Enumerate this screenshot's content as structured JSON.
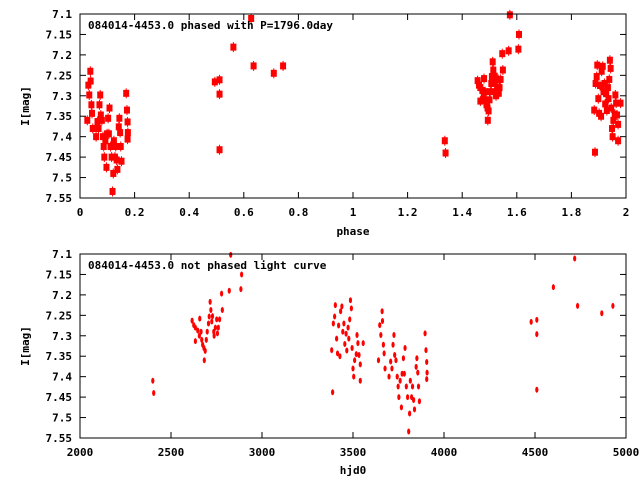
{
  "colors": {
    "points": "#ff0000",
    "axes": "#000000"
  },
  "chart_data": [
    {
      "type": "scatter",
      "title": "084014-4453.0 phased with P=1796.0day",
      "xlabel": "phase",
      "ylabel": "I[mag]",
      "xlim": [
        0,
        2
      ],
      "ylim": [
        7.55,
        7.1
      ],
      "y_inverted": true,
      "period": 1796.0,
      "phase_rule": "phase = (hjd0 / period) mod 2, derived from the light-curve series below",
      "xticks": [
        "0",
        "0.2",
        "0.4",
        "0.6",
        "0.8",
        "1",
        "1.2",
        "1.4",
        "1.6",
        "1.8",
        "2"
      ],
      "yticks": [
        "7.1",
        "7.15",
        "7.2",
        "7.25",
        "7.3",
        "7.35",
        "7.4",
        "7.45",
        "7.5",
        "7.55"
      ],
      "marker": "square"
    },
    {
      "type": "scatter",
      "title": "084014-4453.0 not phased light curve",
      "xlabel": "hjd0",
      "ylabel": "I[mag]",
      "xlim": [
        2000,
        5000
      ],
      "ylim": [
        7.55,
        7.1
      ],
      "y_inverted": true,
      "xticks": [
        "2000",
        "2500",
        "3000",
        "3500",
        "4000",
        "4500",
        "5000"
      ],
      "yticks": [
        "7.1",
        "7.15",
        "7.2",
        "7.25",
        "7.3",
        "7.35",
        "7.4",
        "7.45",
        "7.5",
        "7.55"
      ],
      "marker": "ellipse",
      "points": [
        [
          2400,
          7.41
        ],
        [
          2405,
          7.44
        ],
        [
          2616,
          7.263
        ],
        [
          2625,
          7.274
        ],
        [
          2634,
          7.28
        ],
        [
          2634,
          7.313
        ],
        [
          2647,
          7.287
        ],
        [
          2656,
          7.3
        ],
        [
          2658,
          7.258
        ],
        [
          2665,
          7.29
        ],
        [
          2669,
          7.31
        ],
        [
          2674,
          7.322
        ],
        [
          2681,
          7.33
        ],
        [
          2683,
          7.36
        ],
        [
          2688,
          7.337
        ],
        [
          2694,
          7.31
        ],
        [
          2699,
          7.29
        ],
        [
          2706,
          7.27
        ],
        [
          2710,
          7.253
        ],
        [
          2715,
          7.217
        ],
        [
          2719,
          7.237
        ],
        [
          2724,
          7.265
        ],
        [
          2728,
          7.252
        ],
        [
          2735,
          7.29
        ],
        [
          2737,
          7.3
        ],
        [
          2744,
          7.28
        ],
        [
          2751,
          7.26
        ],
        [
          2755,
          7.294
        ],
        [
          2760,
          7.28
        ],
        [
          2767,
          7.26
        ],
        [
          2778,
          7.197
        ],
        [
          2782,
          7.237
        ],
        [
          2820,
          7.19
        ],
        [
          2828,
          7.102
        ],
        [
          2884,
          7.186
        ],
        [
          2888,
          7.15
        ],
        [
          3383,
          7.335
        ],
        [
          3388,
          7.438
        ],
        [
          3392,
          7.27
        ],
        [
          3399,
          7.253
        ],
        [
          3403,
          7.225
        ],
        [
          3410,
          7.307
        ],
        [
          3415,
          7.343
        ],
        [
          3421,
          7.275
        ],
        [
          3428,
          7.35
        ],
        [
          3432,
          7.24
        ],
        [
          3439,
          7.228
        ],
        [
          3444,
          7.29
        ],
        [
          3450,
          7.27
        ],
        [
          3455,
          7.32
        ],
        [
          3462,
          7.295
        ],
        [
          3466,
          7.336
        ],
        [
          3473,
          7.28
        ],
        [
          3477,
          7.307
        ],
        [
          3482,
          7.26
        ],
        [
          3486,
          7.213
        ],
        [
          3491,
          7.233
        ],
        [
          3495,
          7.33
        ],
        [
          3500,
          7.38
        ],
        [
          3504,
          7.4
        ],
        [
          3509,
          7.36
        ],
        [
          3518,
          7.345
        ],
        [
          3522,
          7.298
        ],
        [
          3527,
          7.318
        ],
        [
          3533,
          7.347
        ],
        [
          3540,
          7.37
        ],
        [
          3540,
          7.41
        ],
        [
          3556,
          7.318
        ],
        [
          3640,
          7.36
        ],
        [
          3647,
          7.274
        ],
        [
          3653,
          7.298
        ],
        [
          3660,
          7.24
        ],
        [
          3662,
          7.264
        ],
        [
          3667,
          7.322
        ],
        [
          3671,
          7.343
        ],
        [
          3676,
          7.38
        ],
        [
          3698,
          7.4
        ],
        [
          3707,
          7.363
        ],
        [
          3714,
          7.38
        ],
        [
          3720,
          7.322
        ],
        [
          3725,
          7.298
        ],
        [
          3729,
          7.347
        ],
        [
          3736,
          7.36
        ],
        [
          3743,
          7.4
        ],
        [
          3748,
          7.424
        ],
        [
          3752,
          7.45
        ],
        [
          3759,
          7.41
        ],
        [
          3766,
          7.475
        ],
        [
          3770,
          7.393
        ],
        [
          3777,
          7.355
        ],
        [
          3782,
          7.393
        ],
        [
          3786,
          7.33
        ],
        [
          3793,
          7.424
        ],
        [
          3800,
          7.45
        ],
        [
          3806,
          7.534
        ],
        [
          3811,
          7.49
        ],
        [
          3815,
          7.41
        ],
        [
          3822,
          7.45
        ],
        [
          3827,
          7.424
        ],
        [
          3833,
          7.457
        ],
        [
          3838,
          7.48
        ],
        [
          3847,
          7.376
        ],
        [
          3851,
          7.355
        ],
        [
          3856,
          7.39
        ],
        [
          3860,
          7.424
        ],
        [
          3865,
          7.46
        ],
        [
          3896,
          7.294
        ],
        [
          3901,
          7.335
        ],
        [
          3905,
          7.364
        ],
        [
          3907,
          7.39
        ],
        [
          3905,
          7.406
        ],
        [
          4479,
          7.266
        ],
        [
          4510,
          7.261
        ],
        [
          4510,
          7.296
        ],
        [
          4510,
          7.432
        ],
        [
          4601,
          7.181
        ],
        [
          4718,
          7.111
        ],
        [
          4734,
          7.227
        ],
        [
          4867,
          7.245
        ],
        [
          4928,
          7.227
        ]
      ]
    }
  ]
}
